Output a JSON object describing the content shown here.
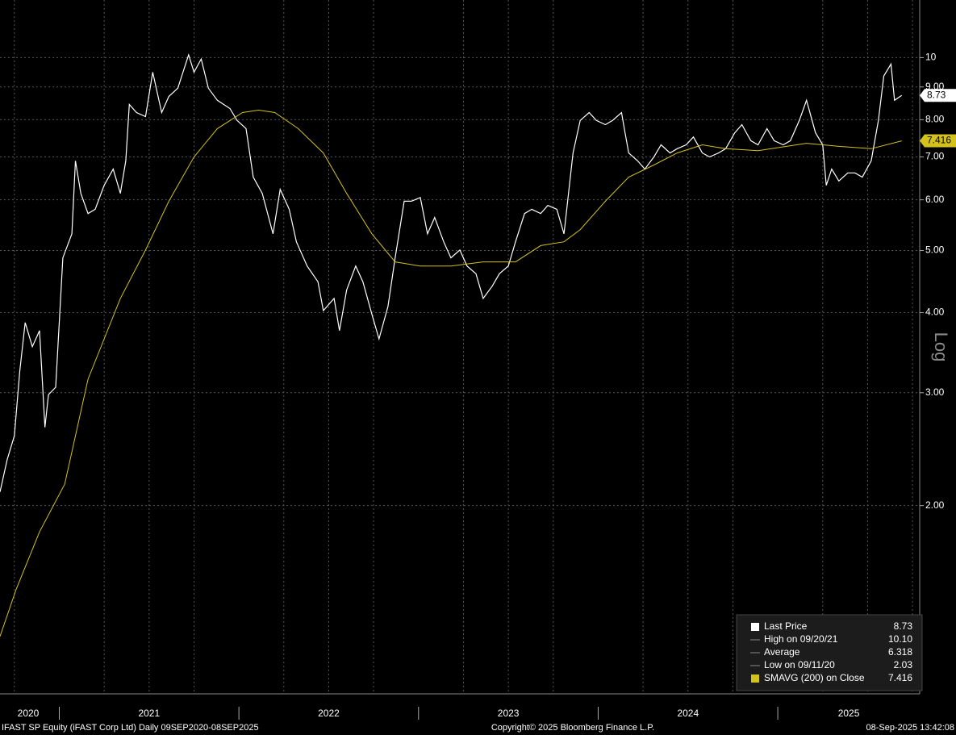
{
  "chart_data": {
    "type": "line",
    "yscale": "log",
    "yscale_label": "Log",
    "grid": true,
    "xlim": [
      2020.67,
      2025.79
    ],
    "xticks": [
      2021,
      2022,
      2023,
      2024,
      2025
    ],
    "x_labels": [
      "2020",
      "2021",
      "2022",
      "2023",
      "2024",
      "2025"
    ],
    "xgrid": [
      2020.75,
      2021.25,
      2021.5,
      2021.75,
      2022.25,
      2022.5,
      2022.75,
      2023.25,
      2023.5,
      2023.75,
      2024.25,
      2024.5,
      2024.75,
      2025.25,
      2025.5,
      2025.75
    ],
    "ylim": [
      1.017,
      12.3
    ],
    "yticks": [
      2,
      3,
      4,
      5,
      6,
      7,
      8,
      9,
      10
    ],
    "ytick_labels": [
      "2.00",
      "3.00",
      "4.00",
      "5.00",
      "6.00",
      "7.00",
      "8.00",
      "9.00",
      "10"
    ],
    "series": [
      {
        "name": "Last Price",
        "color": "#ffffff",
        "x": [
          2020.67,
          2020.71,
          2020.75,
          2020.78,
          2020.81,
          2020.85,
          2020.89,
          2020.92,
          2020.94,
          2020.98,
          2021.02,
          2021.07,
          2021.09,
          2021.12,
          2021.16,
          2021.2,
          2021.25,
          2021.3,
          2021.34,
          2021.37,
          2021.39,
          2021.43,
          2021.48,
          2021.52,
          2021.57,
          2021.61,
          2021.66,
          2021.72,
          2021.75,
          2021.79,
          2021.83,
          2021.88,
          2021.95,
          2021.99,
          2022.04,
          2022.08,
          2022.13,
          2022.19,
          2022.23,
          2022.28,
          2022.32,
          2022.38,
          2022.44,
          2022.47,
          2022.53,
          2022.56,
          2022.6,
          2022.65,
          2022.69,
          2022.74,
          2022.78,
          2022.83,
          2022.87,
          2022.92,
          2022.96,
          2023.01,
          2023.05,
          2023.09,
          2023.14,
          2023.18,
          2023.23,
          2023.27,
          2023.32,
          2023.36,
          2023.41,
          2023.45,
          2023.5,
          2023.54,
          2023.59,
          2023.63,
          2023.68,
          2023.72,
          2023.77,
          2023.81,
          2023.86,
          2023.9,
          2023.95,
          2023.99,
          2024.04,
          2024.08,
          2024.13,
          2024.15,
          2024.17,
          2024.22,
          2024.26,
          2024.31,
          2024.35,
          2024.4,
          2024.44,
          2024.49,
          2024.53,
          2024.58,
          2024.62,
          2024.67,
          2024.71,
          2024.76,
          2024.8,
          2024.85,
          2024.89,
          2024.94,
          2024.98,
          2025.03,
          2025.07,
          2025.12,
          2025.16,
          2025.21,
          2025.25,
          2025.27,
          2025.3,
          2025.34,
          2025.39,
          2025.43,
          2025.47,
          2025.52,
          2025.56,
          2025.59,
          2025.63,
          2025.65,
          2025.69
        ],
        "values": [
          2.1,
          2.36,
          2.57,
          3.24,
          3.86,
          3.54,
          3.75,
          2.65,
          2.98,
          3.06,
          4.87,
          5.31,
          6.9,
          6.14,
          5.71,
          5.8,
          6.32,
          6.7,
          6.14,
          6.9,
          8.45,
          8.21,
          8.09,
          9.49,
          8.21,
          8.7,
          8.96,
          10.1,
          9.49,
          9.95,
          8.96,
          8.58,
          8.33,
          7.98,
          7.75,
          6.51,
          6.14,
          5.31,
          6.23,
          5.8,
          5.16,
          4.73,
          4.47,
          4.03,
          4.21,
          3.75,
          4.34,
          4.73,
          4.47,
          3.98,
          3.64,
          4.09,
          4.87,
          5.97,
          5.97,
          6.05,
          5.31,
          5.63,
          5.16,
          4.87,
          5.01,
          4.73,
          4.6,
          4.21,
          4.4,
          4.6,
          4.73,
          5.16,
          5.71,
          5.8,
          5.71,
          5.88,
          5.8,
          5.31,
          7.1,
          7.98,
          8.21,
          7.98,
          7.86,
          7.98,
          8.21,
          7.63,
          7.1,
          6.9,
          6.7,
          7.0,
          7.31,
          7.1,
          7.21,
          7.31,
          7.52,
          7.1,
          7.0,
          7.1,
          7.21,
          7.63,
          7.86,
          7.42,
          7.31,
          7.75,
          7.42,
          7.31,
          7.42,
          7.98,
          8.58,
          7.63,
          7.31,
          6.32,
          6.7,
          6.42,
          6.61,
          6.61,
          6.51,
          6.9,
          7.98,
          9.36,
          9.77,
          8.58,
          8.73
        ]
      },
      {
        "name": "SMAVG (200)  on Close",
        "color": "#d4c21c",
        "x": [
          2020.67,
          2020.76,
          2020.89,
          2021.03,
          2021.16,
          2021.34,
          2021.48,
          2021.61,
          2021.75,
          2021.88,
          2022.02,
          2022.11,
          2022.2,
          2022.33,
          2022.47,
          2022.6,
          2022.74,
          2022.87,
          2023.01,
          2023.18,
          2023.36,
          2023.54,
          2023.68,
          2023.81,
          2023.9,
          2024.04,
          2024.17,
          2024.31,
          2024.44,
          2024.58,
          2024.71,
          2024.89,
          2025.16,
          2025.34,
          2025.52,
          2025.69
        ],
        "values": [
          1.25,
          1.48,
          1.82,
          2.16,
          3.15,
          4.21,
          5.01,
          5.97,
          7.0,
          7.75,
          8.21,
          8.28,
          8.21,
          7.75,
          7.1,
          6.14,
          5.31,
          4.8,
          4.73,
          4.73,
          4.8,
          4.8,
          5.09,
          5.16,
          5.39,
          5.97,
          6.51,
          6.8,
          7.1,
          7.31,
          7.21,
          7.16,
          7.35,
          7.27,
          7.21,
          7.416
        ]
      }
    ],
    "legend": [
      {
        "name": "Last Price",
        "value": 8.73
      },
      {
        "name": "High on 09/20/21",
        "value": 10.1,
        "value_label": "10.10"
      },
      {
        "name": "Average",
        "value": 6.318
      },
      {
        "name": "Low on 09/11/20",
        "value": 2.03
      },
      {
        "name": "SMAVG (200)  on Close",
        "value": 7.416
      }
    ],
    "footer": {
      "left": "IFAST SP Equity (iFAST Corp Ltd)  Daily 09SEP2020-08SEP2025",
      "center": "Copyright© 2025 Bloomberg Finance L.P.",
      "right": "08-Sep-2025 13:42:08"
    }
  }
}
